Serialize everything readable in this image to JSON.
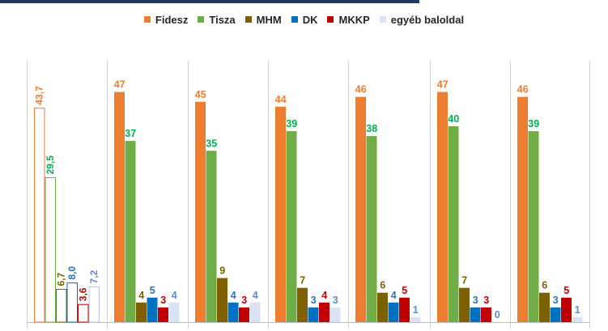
{
  "chart_data": {
    "type": "bar",
    "series_names": [
      "Fidesz",
      "Tisza",
      "MHM",
      "DK",
      "MKKP",
      "egyéb baloldal"
    ],
    "colors": {
      "Fidesz": "#ed7d31",
      "Tisza": "#70ad47",
      "MHM": "#7f6000",
      "DK": "#0070c0",
      "MKKP": "#c00000",
      "egyéb baloldal": "#dae3f3"
    },
    "label_colors": {
      "Fidesz": "#ed7d31",
      "Tisza": "#00b050",
      "MHM": "#7f6000",
      "DK": "#2e75b6",
      "MKKP": "#c00000",
      "egyéb baloldal": "#5b8dc9"
    },
    "groups": [
      {
        "style": "outline",
        "values": [
          43.7,
          29.5,
          6.7,
          8.0,
          3.6,
          7.2
        ],
        "labels": [
          "43,7",
          "29,5",
          "6,7",
          "8,0",
          "3,6",
          "7,2"
        ]
      },
      {
        "style": "filled",
        "values": [
          47,
          37,
          4,
          5,
          3,
          4
        ],
        "labels": [
          "47",
          "37",
          "4",
          "5",
          "3",
          "4"
        ]
      },
      {
        "style": "filled",
        "values": [
          45,
          35,
          9,
          4,
          3,
          4
        ],
        "labels": [
          "45",
          "35",
          "9",
          "4",
          "3",
          "4"
        ]
      },
      {
        "style": "filled",
        "values": [
          44,
          39,
          7,
          3,
          4,
          3
        ],
        "labels": [
          "44",
          "39",
          "7",
          "3",
          "4",
          "3"
        ]
      },
      {
        "style": "filled",
        "values": [
          46,
          38,
          6,
          4,
          5,
          1
        ],
        "labels": [
          "46",
          "38",
          "6",
          "4",
          "5",
          "1"
        ]
      },
      {
        "style": "filled",
        "values": [
          47,
          40,
          7,
          3,
          3,
          0
        ],
        "labels": [
          "47",
          "40",
          "7",
          "3",
          "3",
          "0"
        ]
      },
      {
        "style": "filled",
        "values": [
          46,
          39,
          6,
          3,
          5,
          1
        ],
        "labels": [
          "46",
          "39",
          "6",
          "3",
          "5",
          "1"
        ]
      }
    ],
    "ylim": [
      0,
      50
    ]
  }
}
